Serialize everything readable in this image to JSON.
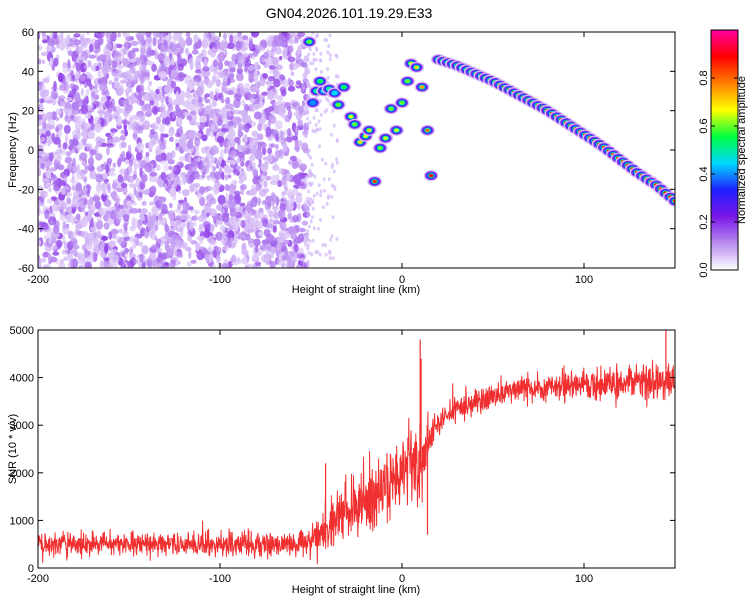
{
  "figure": {
    "title": "GN04.2026.101.19.29.E33"
  },
  "chart_data": [
    {
      "type": "heatmap",
      "title": "GN04.2026.101.19.29.E33",
      "xlabel": "Height of straight line (km)",
      "ylabel": "Frequency (Hz)",
      "xlim": [
        -200,
        150
      ],
      "ylim": [
        -60,
        60
      ],
      "xticks": [
        -200,
        -100,
        0,
        100
      ],
      "yticks": [
        -60,
        -40,
        -20,
        0,
        20,
        40,
        60
      ],
      "xtick_labels": [
        "-200",
        "-100",
        "0",
        "100"
      ],
      "ytick_labels": [
        "-60",
        "-40",
        "-20",
        "0",
        "20",
        "40",
        "60"
      ],
      "colorbar": {
        "label": "Normalized spectral amplitude",
        "range": [
          0,
          1
        ],
        "ticks": [
          0.0,
          0.2,
          0.4,
          0.6,
          0.8
        ],
        "tick_labels": [
          "0.0",
          "0.2",
          "0.4",
          "0.6",
          "0.8"
        ],
        "colormap": [
          "#ffffff",
          "#b98cf0",
          "#7a17e6",
          "#2020ff",
          "#00d8ff",
          "#00ff40",
          "#ffff00",
          "#ff8000",
          "#ff0000",
          "#ff00a0"
        ]
      },
      "noise_region": {
        "x_range": [
          -200,
          -52
        ],
        "level_range": [
          0.05,
          0.18
        ],
        "sparse_fringe_x": [
          -52,
          -35
        ]
      },
      "ridge_points": [
        {
          "x": -51,
          "y": 55,
          "v": 0.6
        },
        {
          "x": -49,
          "y": 24,
          "v": 0.4
        },
        {
          "x": -47,
          "y": 30,
          "v": 0.5
        },
        {
          "x": -45,
          "y": 35,
          "v": 0.55
        },
        {
          "x": -43,
          "y": 30,
          "v": 0.45
        },
        {
          "x": -40,
          "y": 31,
          "v": 0.5
        },
        {
          "x": -37,
          "y": 29,
          "v": 0.45
        },
        {
          "x": -35,
          "y": 23,
          "v": 0.6
        },
        {
          "x": -32,
          "y": 32,
          "v": 0.55
        },
        {
          "x": -28,
          "y": 17,
          "v": 0.65
        },
        {
          "x": -26,
          "y": 13,
          "v": 0.6
        },
        {
          "x": -23,
          "y": 4,
          "v": 0.7
        },
        {
          "x": -20,
          "y": 7,
          "v": 0.65
        },
        {
          "x": -18,
          "y": 10,
          "v": 0.7
        },
        {
          "x": -15,
          "y": -16,
          "v": 0.85
        },
        {
          "x": -12,
          "y": 1,
          "v": 0.6
        },
        {
          "x": -9,
          "y": 6,
          "v": 0.65
        },
        {
          "x": -6,
          "y": 21,
          "v": 0.6
        },
        {
          "x": -3,
          "y": 10,
          "v": 0.65
        },
        {
          "x": 0,
          "y": 24,
          "v": 0.6
        },
        {
          "x": 3,
          "y": 35,
          "v": 0.6
        },
        {
          "x": 5,
          "y": 44,
          "v": 0.65
        },
        {
          "x": 8,
          "y": 42,
          "v": 0.7
        },
        {
          "x": 11,
          "y": 32,
          "v": 0.75
        },
        {
          "x": 14,
          "y": 10,
          "v": 0.8
        },
        {
          "x": 16,
          "y": -13,
          "v": 0.9
        }
      ],
      "ridge_line": {
        "x": [
          20,
          30,
          40,
          50,
          60,
          70,
          80,
          90,
          100,
          110,
          120,
          130,
          140,
          150
        ],
        "y": [
          46,
          43,
          39,
          35,
          30,
          25,
          20,
          14,
          8,
          2,
          -5,
          -12,
          -18,
          -26
        ],
        "v": 0.85
      }
    },
    {
      "type": "line",
      "xlabel": "Height of straight line (km)",
      "ylabel": "SNR (10 * v/v)",
      "xlim": [
        -200,
        150
      ],
      "ylim": [
        0,
        5000
      ],
      "xticks": [
        -200,
        -100,
        0,
        100
      ],
      "yticks": [
        0,
        1000,
        2000,
        3000,
        4000,
        5000
      ],
      "xtick_labels": [
        "-200",
        "-100",
        "0",
        "100"
      ],
      "ytick_labels": [
        "0",
        "1000",
        "2000",
        "3000",
        "4000",
        "5000"
      ],
      "series": [
        {
          "name": "SNR",
          "color": "#f03030",
          "envelope_x": [
            -200,
            -150,
            -100,
            -60,
            -50,
            -45,
            -40,
            -30,
            -20,
            -10,
            0,
            5,
            10,
            15,
            20,
            30,
            40,
            50,
            60,
            80,
            100,
            120,
            140,
            150
          ],
          "envelope_mean": [
            500,
            500,
            500,
            500,
            520,
            700,
            1000,
            1200,
            1400,
            1700,
            2100,
            2400,
            2000,
            2800,
            3100,
            3350,
            3500,
            3600,
            3700,
            3800,
            3850,
            3900,
            3900,
            3900
          ],
          "envelope_halfwidth": [
            380,
            380,
            380,
            380,
            450,
            650,
            800,
            900,
            1000,
            1050,
            1100,
            1150,
            1200,
            600,
            450,
            420,
            420,
            420,
            420,
            450,
            480,
            500,
            500,
            500
          ],
          "spikes": [
            {
              "x": 10,
              "y": 4800
            },
            {
              "x": 10.5,
              "y": 4400
            },
            {
              "x": 14,
              "y": 700
            },
            {
              "x": 145,
              "y": 5000
            },
            {
              "x": -42,
              "y": 2200
            }
          ]
        }
      ]
    }
  ]
}
